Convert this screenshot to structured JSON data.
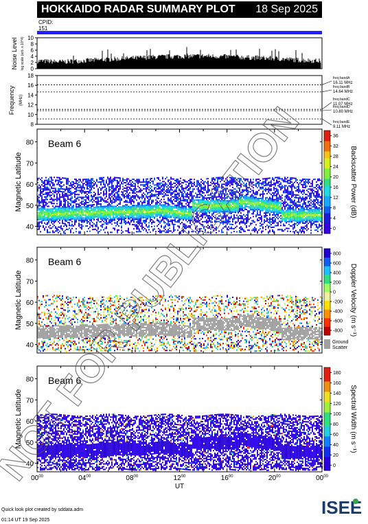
{
  "header": {
    "title": "HOKKAIDO RADAR SUMMARY PLOT",
    "date": "18 Sep 2025",
    "cpid_label": "CPID:",
    "cpid_value": "151"
  },
  "noise_panel": {
    "ylabel": "Noise Level",
    "ylabel_sub": "log scale (arb. x 10^4)",
    "ticks": [
      "0",
      "2",
      "4",
      "6",
      "8",
      "10"
    ],
    "ylim": [
      0,
      10
    ]
  },
  "freq_panel": {
    "ylabel": "Frequency",
    "ylabel_unit": "(MHz)",
    "ticks": [
      "8",
      "10",
      "12",
      "14",
      "16",
      "18"
    ],
    "ylim": [
      8,
      18
    ],
    "bands": [
      {
        "label": "freq bandA",
        "value": "16.11 MHz"
      },
      {
        "label": "freq bandB",
        "value": "14.64 MHz"
      },
      {
        "label": "freq bandC",
        "value": "11.07 MHz"
      },
      {
        "label": "freq bandD",
        "value": "10.80 MHz"
      },
      {
        "label": "freq bandE",
        "value": "9.11 MHz"
      }
    ]
  },
  "panels": [
    {
      "beam": "Beam  6",
      "ylabel": "Magnetic Latitude",
      "cb_label": "Backscatter Power (dB)",
      "cb_ticks": [
        "0",
        "4",
        "8",
        "12",
        "16",
        "20",
        "24",
        "28",
        "32",
        "36"
      ]
    },
    {
      "beam": "Beam  6",
      "ylabel": "Magnetic Latitude",
      "cb_label": "Doppler Velocity (m s⁻¹)",
      "cb_ticks": [
        "-800",
        "-600",
        "-400",
        "-200",
        "0",
        "200",
        "400",
        "600",
        "800"
      ],
      "ground_label": "Ground",
      "ground_label2": "Scatter"
    },
    {
      "beam": "Beam  6",
      "ylabel": "Magnetic Latitude",
      "cb_label": "Spectral Width (m s⁻¹)",
      "cb_ticks": [
        "0",
        "20",
        "40",
        "60",
        "80",
        "100",
        "120",
        "140",
        "160",
        "180"
      ]
    }
  ],
  "lat_ticks": [
    "40",
    "50",
    "60",
    "70",
    "80"
  ],
  "xaxis": {
    "ticks": [
      "00",
      "04",
      "08",
      "12",
      "16",
      "20",
      "00"
    ],
    "tick_sup": "00",
    "label": "UT"
  },
  "footer": {
    "line1": "Quick look plot created by sddata.adm",
    "line2": "01:14 UT 19 Sep 2025"
  },
  "logo": "ISEE",
  "watermark": "NOT FOR PUBLICATION",
  "colors": {
    "title_bg": "#000000",
    "cpid_bar": "#2020ff",
    "ground_scatter": "#a0a0a0"
  },
  "chart_data": [
    {
      "type": "area",
      "title": "Noise Level",
      "x_range_ut": [
        0,
        24
      ],
      "ylim": [
        0,
        10
      ],
      "x": [
        0,
        2,
        4,
        6,
        8,
        10,
        12,
        14,
        16,
        18,
        20,
        22,
        24
      ],
      "values": [
        2.5,
        2.2,
        2.6,
        3.0,
        3.4,
        3.8,
        4.0,
        4.1,
        3.9,
        3.6,
        3.3,
        2.8,
        2.5
      ]
    },
    {
      "type": "line",
      "title": "Frequency",
      "x_range_ut": [
        0,
        24
      ],
      "ylim": [
        8,
        18
      ],
      "series": [
        {
          "name": "freq bandA",
          "values": [
            16.11
          ]
        },
        {
          "name": "freq bandB",
          "values": [
            14.64
          ]
        },
        {
          "name": "freq bandC",
          "values": [
            11.07
          ]
        },
        {
          "name": "freq bandD",
          "values": [
            10.8
          ]
        },
        {
          "name": "freq bandE",
          "values": [
            9.11
          ]
        }
      ]
    },
    {
      "type": "heatmap",
      "title": "Backscatter Power (dB)",
      "x_range_ut": [
        0,
        24
      ],
      "ylim": [
        36,
        86
      ],
      "clim": [
        0,
        36
      ]
    },
    {
      "type": "heatmap",
      "title": "Doppler Velocity (m s⁻¹)",
      "x_range_ut": [
        0,
        24
      ],
      "ylim": [
        36,
        86
      ],
      "clim": [
        -800,
        800
      ]
    },
    {
      "type": "heatmap",
      "title": "Spectral Width (m s⁻¹)",
      "x_range_ut": [
        0,
        24
      ],
      "ylim": [
        36,
        86
      ],
      "clim": [
        0,
        180
      ]
    }
  ]
}
